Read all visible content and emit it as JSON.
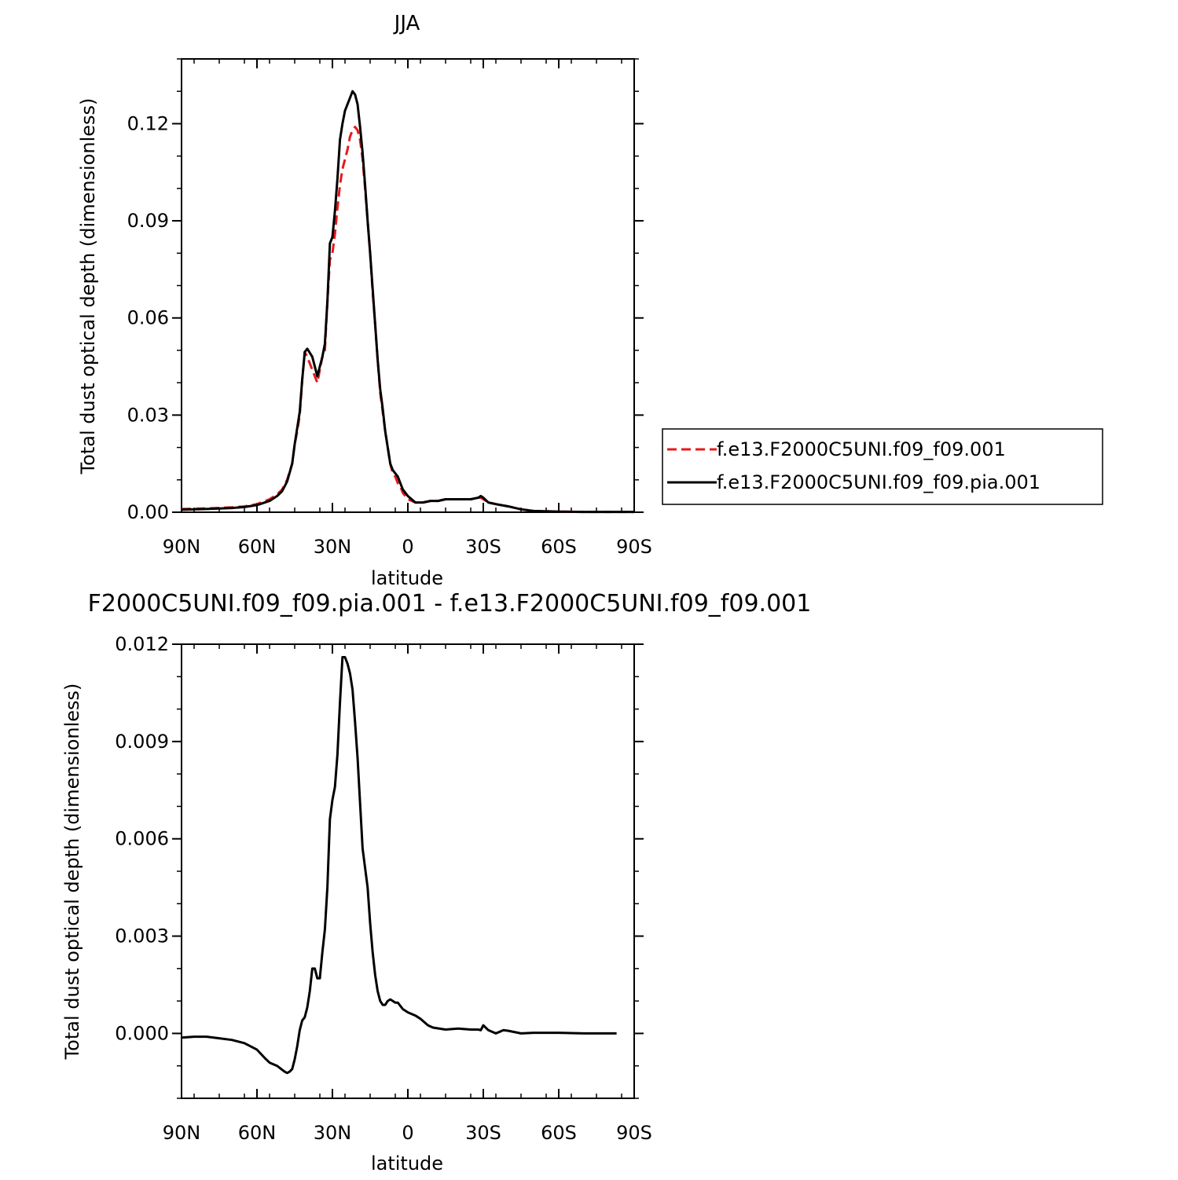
{
  "chart_data": [
    {
      "type": "line",
      "title": "JJA",
      "xlabel": "latitude",
      "ylabel": "Total dust optical depth (dimensionless)",
      "xlim": [
        90,
        -90
      ],
      "ylim": [
        0,
        0.14
      ],
      "xticks": [
        90,
        60,
        30,
        0,
        -30,
        -60,
        -90
      ],
      "xtick_labels": [
        "90N",
        "60N",
        "30N",
        "0",
        "30S",
        "60S",
        "90S"
      ],
      "yticks": [
        0,
        0.03,
        0.06,
        0.09,
        0.12
      ],
      "ytick_labels": [
        "0.00",
        "0.03",
        "0.06",
        "0.09",
        "0.12"
      ],
      "legend_position": "right",
      "series": [
        {
          "name": "f.e13.F2000C5UNI.f09_f09.001",
          "color": "#e41a1c",
          "dash": "dashed",
          "x": [
            90,
            80,
            70,
            65,
            60,
            55,
            52,
            50,
            48,
            46,
            45,
            44,
            43,
            42,
            41,
            40,
            38,
            36,
            35,
            34,
            33,
            32,
            31,
            30,
            29,
            28,
            27,
            26,
            25,
            24,
            23,
            22,
            21,
            20,
            19,
            18,
            17,
            16,
            15,
            14,
            13,
            12,
            11,
            10,
            9,
            8,
            7,
            6,
            5,
            4,
            3,
            2,
            0,
            -3,
            -6,
            -9,
            -12,
            -15,
            -20,
            -25,
            -28,
            -29,
            -30,
            -32,
            -35,
            -40,
            -45,
            -50,
            -60,
            -70,
            -80,
            -90
          ],
          "y": [
            0.001,
            0.0012,
            0.0015,
            0.0018,
            0.0025,
            0.004,
            0.0055,
            0.007,
            0.01,
            0.015,
            0.021,
            0.025,
            0.03,
            0.041,
            0.0495,
            0.048,
            0.044,
            0.04,
            0.044,
            0.048,
            0.05,
            0.065,
            0.078,
            0.08,
            0.086,
            0.094,
            0.101,
            0.106,
            0.109,
            0.112,
            0.116,
            0.118,
            0.119,
            0.118,
            0.115,
            0.109,
            0.1,
            0.09,
            0.08,
            0.068,
            0.058,
            0.047,
            0.037,
            0.031,
            0.025,
            0.02,
            0.015,
            0.012,
            0.011,
            0.009,
            0.008,
            0.006,
            0.004,
            0.003,
            0.003,
            0.0035,
            0.0035,
            0.004,
            0.004,
            0.004,
            0.0045,
            0.0045,
            0.004,
            0.003,
            0.0025,
            0.0018,
            0.0009,
            0.0004,
            0.0002,
            0.0001,
            0.0001,
            0.0001
          ]
        },
        {
          "name": "f.e13.F2000C5UNI.f09_f09.pia.001",
          "color": "#000000",
          "dash": "solid",
          "x": [
            90,
            80,
            70,
            65,
            60,
            55,
            52,
            50,
            48,
            46,
            45,
            44,
            43,
            42,
            41,
            40,
            38,
            36,
            35,
            34,
            33,
            32,
            31,
            30,
            29,
            28,
            27,
            26,
            25,
            24,
            23,
            22,
            21,
            20,
            19,
            18,
            17,
            16,
            15,
            14,
            13,
            12,
            11,
            10,
            9,
            8,
            7,
            6,
            5,
            4,
            3,
            2,
            0,
            -3,
            -6,
            -9,
            -12,
            -15,
            -20,
            -25,
            -28,
            -29,
            -30,
            -32,
            -35,
            -40,
            -45,
            -50,
            -60,
            -70,
            -80,
            -90
          ],
          "y": [
            0.0008,
            0.001,
            0.0013,
            0.0016,
            0.0022,
            0.0035,
            0.005,
            0.0065,
            0.0095,
            0.015,
            0.021,
            0.026,
            0.031,
            0.041,
            0.0495,
            0.0505,
            0.048,
            0.042,
            0.045,
            0.048,
            0.052,
            0.065,
            0.083,
            0.085,
            0.093,
            0.103,
            0.115,
            0.12,
            0.124,
            0.126,
            0.128,
            0.13,
            0.129,
            0.126,
            0.119,
            0.111,
            0.101,
            0.09,
            0.08,
            0.069,
            0.058,
            0.047,
            0.038,
            0.032,
            0.025,
            0.02,
            0.015,
            0.013,
            0.012,
            0.011,
            0.009,
            0.007,
            0.005,
            0.003,
            0.003,
            0.0035,
            0.0035,
            0.004,
            0.004,
            0.004,
            0.0045,
            0.005,
            0.0045,
            0.003,
            0.0025,
            0.0018,
            0.0009,
            0.0004,
            0.0002,
            0.0001,
            0.0001,
            0.0001
          ]
        }
      ]
    },
    {
      "type": "line",
      "title": "F2000C5UNI.f09_f09.pia.001 - f.e13.F2000C5UNI.f09_f09.001",
      "xlabel": "latitude",
      "ylabel": "Total dust optical depth (dimensionless)",
      "xlim": [
        90,
        -90
      ],
      "ylim": [
        -0.002,
        0.012
      ],
      "xticks": [
        90,
        60,
        30,
        0,
        -30,
        -60,
        -90
      ],
      "xtick_labels": [
        "90N",
        "60N",
        "30N",
        "0",
        "30S",
        "60S",
        "90S"
      ],
      "yticks": [
        0,
        0.003,
        0.006,
        0.009,
        0.012
      ],
      "ytick_labels": [
        "0.000",
        "0.003",
        "0.006",
        "0.009",
        "0.012"
      ],
      "series": [
        {
          "color": "#000000",
          "dash": "solid",
          "x": [
            90,
            85,
            80,
            75,
            70,
            65,
            60,
            57,
            55,
            52,
            50,
            49,
            48,
            47,
            46,
            45,
            44,
            43,
            42,
            41,
            40,
            39,
            38,
            37,
            36,
            35,
            34,
            33,
            32,
            31,
            30,
            29,
            28,
            27,
            26,
            25,
            24,
            23,
            22,
            21,
            20,
            19,
            18,
            17,
            16,
            15,
            14,
            13,
            12,
            11,
            10,
            9,
            8,
            7,
            6,
            5,
            4,
            3,
            2,
            0,
            -3,
            -5,
            -8,
            -10,
            -15,
            -20,
            -25,
            -28,
            -29,
            -30,
            -32,
            -35,
            -38,
            -40,
            -45,
            -50,
            -60,
            -70,
            -80,
            -83
          ],
          "y": [
            -0.00013,
            -0.0001,
            -0.0001,
            -0.00015,
            -0.0002,
            -0.0003,
            -0.0005,
            -0.00075,
            -0.0009,
            -0.001,
            -0.00112,
            -0.00118,
            -0.00122,
            -0.00118,
            -0.0011,
            -0.0008,
            -0.0004,
            0.0001,
            0.0004,
            0.0005,
            0.0008,
            0.0013,
            0.002,
            0.002,
            0.0017,
            0.0017,
            0.0025,
            0.0032,
            0.0045,
            0.0066,
            0.0072,
            0.0076,
            0.0086,
            0.0102,
            0.0116,
            0.0116,
            0.0114,
            0.0111,
            0.0106,
            0.0096,
            0.0085,
            0.0071,
            0.0057,
            0.0051,
            0.0045,
            0.0034,
            0.0025,
            0.0018,
            0.0013,
            0.001,
            0.00088,
            0.00088,
            0.001,
            0.00105,
            0.001,
            0.00095,
            0.00095,
            0.00085,
            0.00075,
            0.00065,
            0.00055,
            0.00045,
            0.00025,
            0.00018,
            0.00012,
            0.00015,
            0.00012,
            0.00012,
            0.0001,
            0.00025,
            0.0001,
            0.0,
            0.0001,
            8e-05,
            0.0,
            2e-05,
            2e-05,
            0.0,
            0.0,
            0.0
          ]
        }
      ]
    }
  ]
}
